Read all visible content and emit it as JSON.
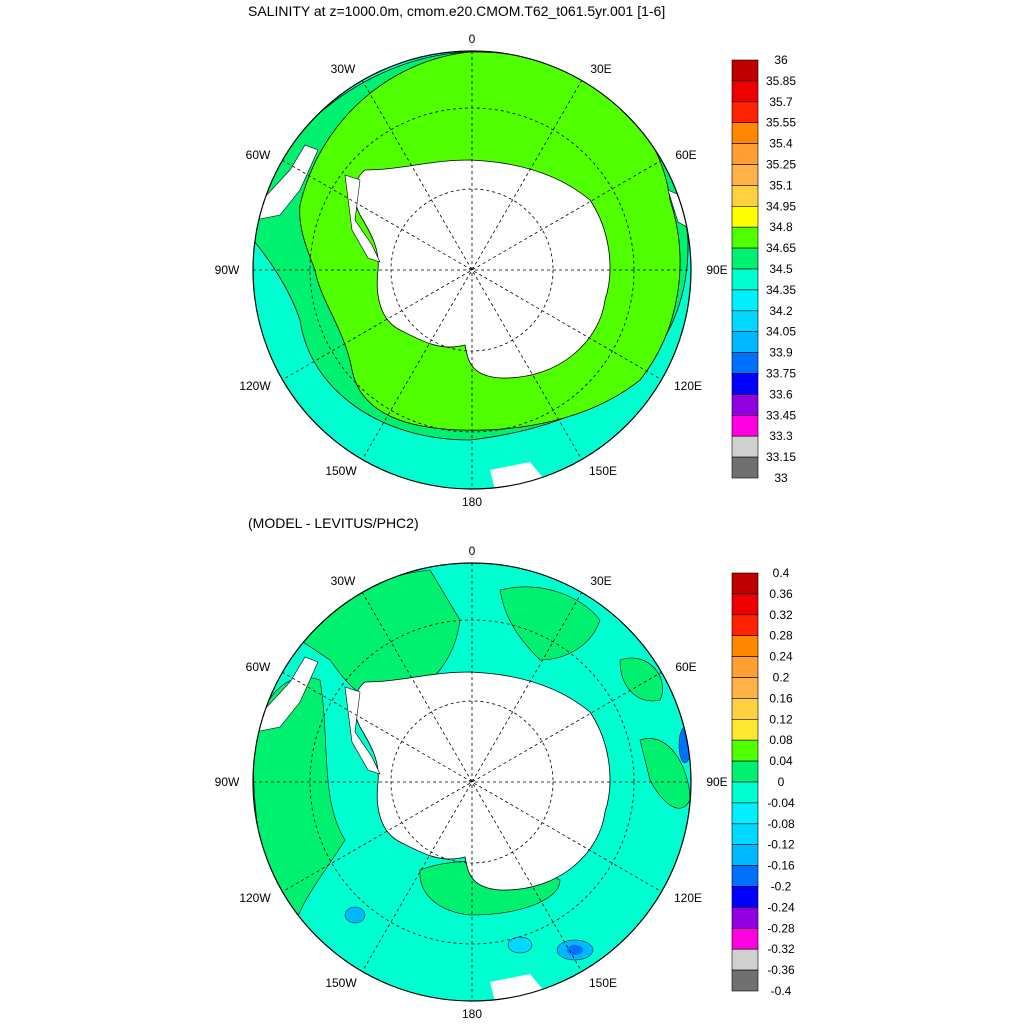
{
  "panel1": {
    "title": "SALINITY at z=1000.0m, cmom.e20.CMOM.T62_t061.5yr.001 [1-6]",
    "colorbar": {
      "labels": [
        "36",
        "35.85",
        "35.7",
        "35.55",
        "35.4",
        "35.25",
        "35.1",
        "34.95",
        "34.8",
        "34.65",
        "34.5",
        "34.35",
        "34.2",
        "34.05",
        "33.9",
        "33.75",
        "33.6",
        "33.45",
        "33.3",
        "33.15",
        "33"
      ],
      "colors": [
        "#c00000",
        "#ee0000",
        "#ff2200",
        "#ff8800",
        "#ff9f33",
        "#ffb347",
        "#ffd040",
        "#ffff00",
        "#50ff00",
        "#00f070",
        "#00ffd0",
        "#00f0ff",
        "#00d8ff",
        "#00b8ff",
        "#0070ff",
        "#0000ff",
        "#9000e0",
        "#ff00e0",
        "#d0d0d0",
        "#707070"
      ]
    }
  },
  "panel2": {
    "title": "(MODEL - LEVITUS/PHC2)",
    "colorbar": {
      "labels": [
        "0.4",
        "0.36",
        "0.32",
        "0.28",
        "0.24",
        "0.2",
        "0.16",
        "0.12",
        "0.08",
        "0.04",
        "0",
        "-0.04",
        "-0.08",
        "-0.12",
        "-0.16",
        "-0.2",
        "-0.24",
        "-0.28",
        "-0.32",
        "-0.36",
        "-0.4"
      ],
      "colors": [
        "#c00000",
        "#ee0000",
        "#ff2200",
        "#ff8800",
        "#ff9f33",
        "#ffb347",
        "#ffd040",
        "#ffe830",
        "#50ff00",
        "#00f070",
        "#00ffd0",
        "#00f0ff",
        "#00d8ff",
        "#00b8ff",
        "#0070ff",
        "#0000ff",
        "#9000e0",
        "#ff00e0",
        "#d0d0d0",
        "#707070"
      ]
    }
  },
  "longitude_labels": {
    "n0": "0",
    "n30w": "30W",
    "n30e": "30E",
    "n60w": "60W",
    "n60e": "60E",
    "n90w": "90W",
    "n90e": "90E",
    "n120w": "120W",
    "n120e": "120E",
    "n150w": "150W",
    "n150e": "150E",
    "n180": "180"
  }
}
